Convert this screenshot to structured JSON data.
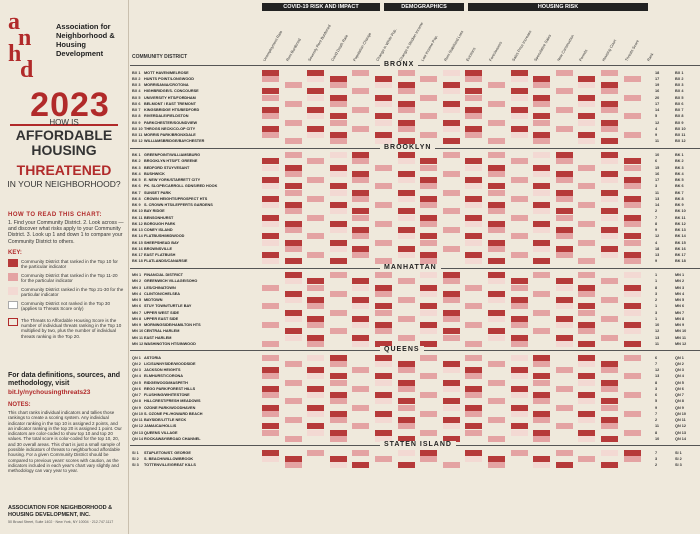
{
  "org": {
    "name": "Association for Neighborhood & Housing Development",
    "logo_letters": "anhd"
  },
  "hero": {
    "year": "2023",
    "line1": "HOW IS",
    "line2a": "AFFORDABLE",
    "line2b": "HOUSING",
    "line3": "THREATENED",
    "line4": "IN YOUR NEIGHBORHOOD?"
  },
  "howto": {
    "heading": "HOW TO READ THIS CHART:",
    "text": "1. Find your Community District. 2. Look across — and discover what risks apply to your Community District. 3. Look up 1 and down 1 to compare your Community District to others."
  },
  "key": {
    "heading": "KEY:",
    "items": [
      "Community District that ranked in the Top 10 for the particular indicator",
      "Community District that ranked in the Top 11-20 for the particular indicator",
      "Community District ranked in the Top 21-30 for the particular indicator",
      "Community District not ranked in the Top 30 (applies to Threats Score only)",
      "The Threats to Affordable Housing Score is the number of individual threats ranking in the Top 10 multiplied by two, plus the number of individual threats ranking in the Top 20."
    ],
    "colors": {
      "top10": "#b63a3a",
      "top20": "#e4a3a3",
      "top30": "#f3d9d3"
    }
  },
  "data": {
    "heading": "For data definitions, sources, and methodology, visit",
    "link": "bit.ly/nychousingthreats23"
  },
  "notes": {
    "heading": "NOTES:",
    "text": "This chart ranks individual indicators and tallies those rankings to create a scoring system. Any individual indicator ranking in the top 10 is assigned 2 points, and an indicator ranking in the top 20 is assigned 1 point. Our indicators are color-coded to show top 10 and top 20 values. The total score is color-coded for the top 10, 20, and 30 overall areas. This chart is just a small sample of possible indicators of threats to neighborhood affordable housing. For a given Community District should be compared to previous years' scores with caution, as the indicators included in each year's chart vary slightly and methodology can vary year to year."
  },
  "footer": {
    "org": "ASSOCIATION FOR NEIGHBORHOOD & HOUSING DEVELOPMENT, INC.",
    "address": "50 Broad Street, Suite 1402 · New York, NY 10004 · 212.747.1117"
  },
  "groups": {
    "covid": "COVID-19 RISK AND IMPACT",
    "demo": "DEMOGRAPHICS",
    "housing": "HOUSING RISK"
  },
  "columns": [
    "Unemployment Rate",
    "Rent Burdened",
    "Severely Rent Burdened",
    "Covid Death Rate",
    "Population Change",
    "Change in White Pop.",
    "Change in Median Income",
    "Low Income Pop.",
    "Rent Stabilized Loss",
    "Evictions",
    "Foreclosures",
    "Sales Price Increase",
    "Speculative Sales",
    "New Construction",
    "Permits",
    "Housing Court",
    "Threats Score",
    "Rank"
  ],
  "cd_label": "COMMUNITY DISTRICT",
  "boroughs": [
    {
      "name": "BRONX",
      "rows": [
        {
          "id": "BX 1",
          "name": "MOTT HAVEN/MELROSE",
          "score": "18"
        },
        {
          "id": "BX 2",
          "name": "HUNTS POINT/LONGWOOD",
          "score": "17"
        },
        {
          "id": "BX 3",
          "name": "MORRISANIA/CROTONA",
          "score": "19"
        },
        {
          "id": "BX 4",
          "name": "HIGHBRIDGE/S. CONCOURSE",
          "score": "16"
        },
        {
          "id": "BX 5",
          "name": "UNIVERSITY HTS/FORDHAM",
          "score": "20"
        },
        {
          "id": "BX 6",
          "name": "BELMONT / EAST TREMONT",
          "score": "17"
        },
        {
          "id": "BX 7",
          "name": "KINGSBRIDGE HTS/BEDFORD",
          "score": "14"
        },
        {
          "id": "BX 8",
          "name": "RIVERDALE/FIELDSTON",
          "score": "5"
        },
        {
          "id": "BX 9",
          "name": "PARKCHESTER/SOUNDVIEW",
          "score": "12"
        },
        {
          "id": "BX 10",
          "name": "THROGS NECK/CO-OP CITY",
          "score": "4"
        },
        {
          "id": "BX 11",
          "name": "MORRIS PARK/BRONXDALE",
          "score": "9"
        },
        {
          "id": "BX 12",
          "name": "WILLIAMSBRIDGE/BAYCHESTER",
          "score": "11"
        }
      ]
    },
    {
      "name": "BROOKLYN",
      "rows": [
        {
          "id": "BK 1",
          "name": "GREENPOINT/WILLIAMSBURG",
          "score": "10"
        },
        {
          "id": "BK 2",
          "name": "BROOKLYN HTS/FT. GREENE",
          "score": "6"
        },
        {
          "id": "BK 3",
          "name": "BEDFORD STUYVESANT",
          "score": "15"
        },
        {
          "id": "BK 4",
          "name": "BUSHWICK",
          "score": "16"
        },
        {
          "id": "BK 5",
          "name": "E. NEW YORK/STARRETT CITY",
          "score": "17"
        },
        {
          "id": "BK 6",
          "name": "PK. SLOPE/CARROLL GDNS/RED HOOK",
          "score": "3"
        },
        {
          "id": "BK 7",
          "name": "SUNSET PARK",
          "score": "11"
        },
        {
          "id": "BK 8",
          "name": "CROWN HEIGHTS/PROSPECT HTS",
          "score": "13"
        },
        {
          "id": "BK 9",
          "name": "S. CROWN HTS/LEFFERTS GARDENS",
          "score": "14"
        },
        {
          "id": "BK 10",
          "name": "BAY RIDGE",
          "score": "2"
        },
        {
          "id": "BK 11",
          "name": "BENSONHURST",
          "score": "7"
        },
        {
          "id": "BK 12",
          "name": "BOROUGH PARK",
          "score": "8"
        },
        {
          "id": "BK 13",
          "name": "CONEY ISLAND",
          "score": "9"
        },
        {
          "id": "BK 14",
          "name": "FLATBUSH/MIDWOOD",
          "score": "12"
        },
        {
          "id": "BK 15",
          "name": "SHEEPSHEAD BAY",
          "score": "4"
        },
        {
          "id": "BK 16",
          "name": "BROWNSVILLE",
          "score": "18"
        },
        {
          "id": "BK 17",
          "name": "EAST FLATBUSH",
          "score": "13"
        },
        {
          "id": "BK 18",
          "name": "FLATLANDS/CANARSIE",
          "score": "9"
        }
      ]
    },
    {
      "name": "MANHATTAN",
      "rows": [
        {
          "id": "MN 1",
          "name": "FINANCIAL DISTRICT",
          "score": "1"
        },
        {
          "id": "MN 2",
          "name": "GREENWICH VILLAGE/SOHO",
          "score": "1"
        },
        {
          "id": "MN 3",
          "name": "LES/CHINATOWN",
          "score": "8"
        },
        {
          "id": "MN 4",
          "name": "CLINTON/CHELSEA",
          "score": "3"
        },
        {
          "id": "MN 5",
          "name": "MIDTOWN",
          "score": "2"
        },
        {
          "id": "MN 6",
          "name": "STUY TOWN/TURTLE BAY",
          "score": "1"
        },
        {
          "id": "MN 7",
          "name": "UPPER WEST SIDE",
          "score": "3"
        },
        {
          "id": "MN 8",
          "name": "UPPER EAST SIDE",
          "score": "1"
        },
        {
          "id": "MN 9",
          "name": "MORNINGSIDE/HAMILTON HTS",
          "score": "10"
        },
        {
          "id": "MN 10",
          "name": "CENTRAL HARLEM",
          "score": "12"
        },
        {
          "id": "MN 11",
          "name": "EAST HARLEM",
          "score": "13"
        },
        {
          "id": "MN 12",
          "name": "WASHINGTON HTS/INWOOD",
          "score": "11"
        }
      ]
    },
    {
      "name": "QUEENS",
      "rows": [
        {
          "id": "QN 1",
          "name": "ASTORIA",
          "score": "6"
        },
        {
          "id": "QN 2",
          "name": "LIC/SUNNYSIDE/WOODSIDE",
          "score": "7"
        },
        {
          "id": "QN 3",
          "name": "JACKSON HEIGHTS",
          "score": "12"
        },
        {
          "id": "QN 4",
          "name": "ELMHURST/CORONA",
          "score": "13"
        },
        {
          "id": "QN 5",
          "name": "RIDGEWOOD/MASPETH",
          "score": "8"
        },
        {
          "id": "QN 6",
          "name": "REGO PARK/FOREST HILLS",
          "score": "3"
        },
        {
          "id": "QN 7",
          "name": "FLUSHING/WHITESTONE",
          "score": "6"
        },
        {
          "id": "QN 8",
          "name": "HILLCREST/FRESH MEADOWS",
          "score": "5"
        },
        {
          "id": "QN 9",
          "name": "OZONE PARK/WOODHAVEN",
          "score": "9"
        },
        {
          "id": "QN 10",
          "name": "S. OZONE PK./HOWARD BEACH",
          "score": "7"
        },
        {
          "id": "QN 11",
          "name": "BAYSIDE/LITTLE NECK",
          "score": "2"
        },
        {
          "id": "QN 12",
          "name": "JAMAICA/HOLLIS",
          "score": "11"
        },
        {
          "id": "QN 13",
          "name": "QUEENS VILLAGE",
          "score": "8"
        },
        {
          "id": "QN 14",
          "name": "ROCKAWAY/BROAD CHANNEL",
          "score": "10"
        }
      ]
    },
    {
      "name": "STATEN ISLAND",
      "rows": [
        {
          "id": "SI 1",
          "name": "STAPLETON/ST. GEORGE",
          "score": "7"
        },
        {
          "id": "SI 2",
          "name": "S. BEACH/WILLOWBROOK",
          "score": "3"
        },
        {
          "id": "SI 3",
          "name": "TOTTENVILLE/GREAT KILLS",
          "score": "2"
        }
      ]
    }
  ]
}
